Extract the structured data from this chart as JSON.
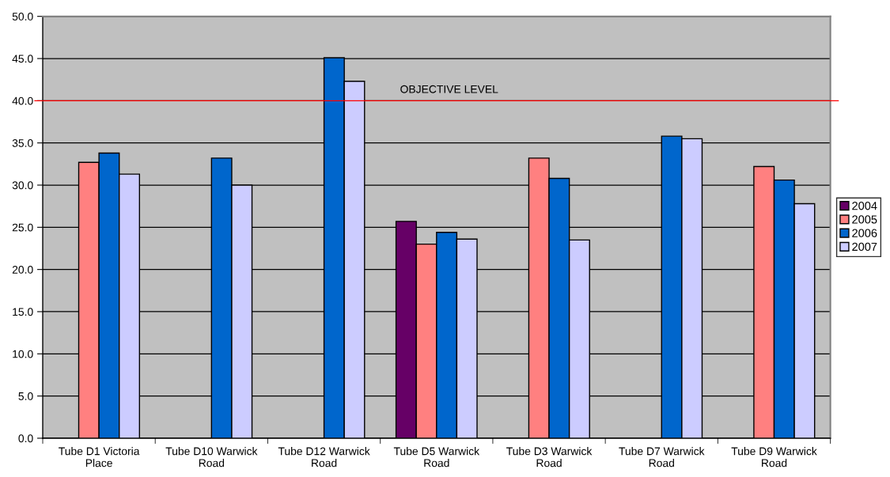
{
  "chart_data": {
    "type": "bar",
    "categories": [
      "Tube D1 Victoria\nPlace",
      "Tube D10 Warwick\nRoad",
      "Tube D12 Warwick\nRoad",
      "Tube D5 Warwick\nRoad",
      "Tube D3 Warwick\nRoad",
      "Tube D7 Warwick\nRoad",
      "Tube D9 Warwick\nRoad"
    ],
    "series": [
      {
        "name": "2004",
        "color": "#660066",
        "values": [
          null,
          null,
          null,
          25.7,
          null,
          null,
          null
        ]
      },
      {
        "name": "2005",
        "color": "#ff8080",
        "values": [
          32.7,
          null,
          null,
          23.0,
          33.2,
          null,
          32.2
        ]
      },
      {
        "name": "2006",
        "color": "#0066cc",
        "values": [
          33.8,
          33.2,
          45.1,
          24.4,
          30.8,
          35.8,
          30.6
        ]
      },
      {
        "name": "2007",
        "color": "#ccccff",
        "values": [
          31.3,
          30.0,
          42.3,
          23.6,
          23.5,
          35.5,
          27.8
        ]
      }
    ],
    "ylim": [
      0,
      50
    ],
    "yticks": [
      {
        "value": 0,
        "label": "0.0"
      },
      {
        "value": 5,
        "label": "5.0"
      },
      {
        "value": 10,
        "label": "10.0"
      },
      {
        "value": 15,
        "label": "15.0"
      },
      {
        "value": 20,
        "label": "20.0"
      },
      {
        "value": 25,
        "label": "25.0"
      },
      {
        "value": 30,
        "label": "30.0"
      },
      {
        "value": 35,
        "label": "35.0"
      },
      {
        "value": 40,
        "label": "40.0"
      },
      {
        "value": 45,
        "label": "45.0"
      },
      {
        "value": 50,
        "label": "50.0"
      }
    ],
    "grid": "y",
    "legend": "right",
    "ref_lines": [
      {
        "axis": "y",
        "value": 40,
        "label": "OBJECTIVE LEVEL",
        "color": "#ff0000"
      }
    ]
  }
}
